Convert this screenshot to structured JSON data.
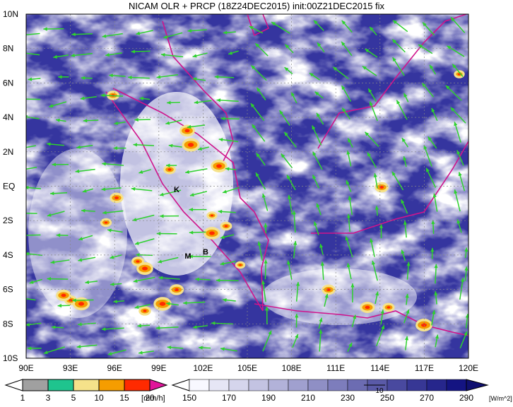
{
  "title": "NICAM OLR + PRCP (18Z24DEC2015) init:00Z21DEC2015 fix",
  "map": {
    "x_labels": [
      "90E",
      "93E",
      "96E",
      "99E",
      "102E",
      "105E",
      "108E",
      "111E",
      "114E",
      "117E",
      "120E"
    ],
    "y_labels": [
      "10N",
      "8N",
      "6N",
      "4N",
      "2N",
      "EQ",
      "2S",
      "4S",
      "6S",
      "8S",
      "10S"
    ],
    "places": [
      {
        "label": "K"
      },
      {
        "label": "M"
      },
      {
        "label": "B"
      }
    ]
  },
  "legend_precip": {
    "labels": [
      "1",
      "3",
      "5",
      "10",
      "15",
      "20"
    ],
    "unit": "[mm/h]"
  },
  "legend_olr": {
    "labels": [
      "150",
      "170",
      "190",
      "210",
      "230",
      "250",
      "270",
      "290"
    ],
    "unit": "[W/m^2]"
  },
  "vector_ref": "10"
}
